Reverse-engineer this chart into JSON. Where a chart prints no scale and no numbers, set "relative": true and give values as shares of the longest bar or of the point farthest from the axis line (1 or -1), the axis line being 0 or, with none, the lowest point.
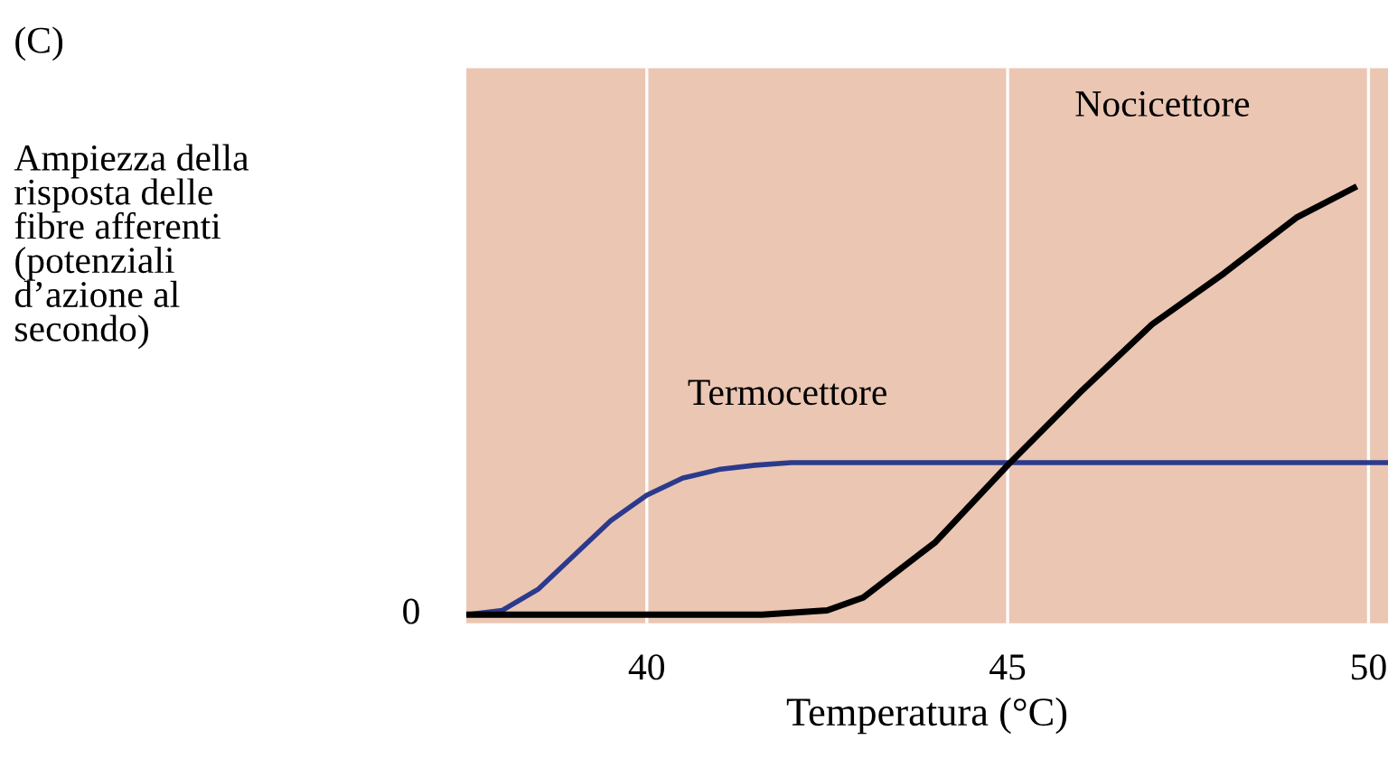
{
  "chart_data": {
    "type": "line",
    "relative": true,
    "xlabel": "Temperatura (°C)",
    "xlim": [
      37.5,
      50.27
    ],
    "xticks": [
      40,
      45,
      50
    ],
    "grid": "x",
    "annotations": [
      "(C)",
      "0",
      "Ampiezza della\nrisposta delle\nfibre afferenti\n(potenziali\nd’azione al\nsecondo)"
    ],
    "series": [
      {
        "name": "Termocettore",
        "color": "#2b3a8c",
        "x": [
          37.5,
          38,
          38.5,
          39,
          39.5,
          40,
          40.5,
          41,
          41.5,
          42,
          50.27
        ],
        "values": [
          0,
          0.01,
          0.06,
          0.14,
          0.22,
          0.28,
          0.32,
          0.34,
          0.35,
          0.356,
          0.356
        ]
      },
      {
        "name": "Nocicettore",
        "color": "#000000",
        "x": [
          37.5,
          41.6,
          42.5,
          43,
          44,
          45,
          46,
          47,
          48,
          49,
          49.8
        ],
        "values": [
          0,
          0,
          0.01,
          0.04,
          0.17,
          0.35,
          0.52,
          0.68,
          0.8,
          0.93,
          1
        ]
      }
    ]
  }
}
